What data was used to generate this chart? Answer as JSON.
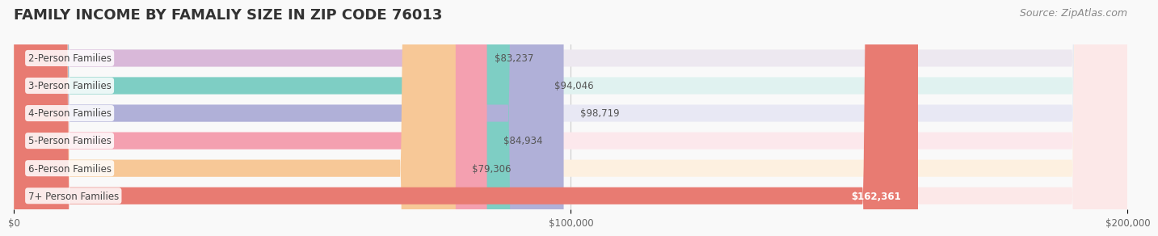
{
  "title": "FAMILY INCOME BY FAMALIY SIZE IN ZIP CODE 76013",
  "source": "Source: ZipAtlas.com",
  "categories": [
    "2-Person Families",
    "3-Person Families",
    "4-Person Families",
    "5-Person Families",
    "6-Person Families",
    "7+ Person Families"
  ],
  "values": [
    83237,
    94046,
    98719,
    84934,
    79306,
    162361
  ],
  "bar_colors": [
    "#d9b8d9",
    "#7ecec4",
    "#b0b0d8",
    "#f4a0b0",
    "#f7c897",
    "#e87b72"
  ],
  "label_colors": [
    "#555555",
    "#555555",
    "#555555",
    "#555555",
    "#555555",
    "#ffffff"
  ],
  "bg_colors": [
    "#ede8f0",
    "#e0f2f0",
    "#e8e8f4",
    "#fce8ec",
    "#fdf0e0",
    "#fce8e8"
  ],
  "xlabel": "",
  "ylabel": "",
  "xlim": [
    0,
    200000
  ],
  "xticks": [
    0,
    100000,
    200000
  ],
  "xtick_labels": [
    "$0",
    "$100,000",
    "$200,000"
  ],
  "background_color": "#f9f9f9",
  "bar_height": 0.62,
  "title_fontsize": 13,
  "source_fontsize": 9
}
